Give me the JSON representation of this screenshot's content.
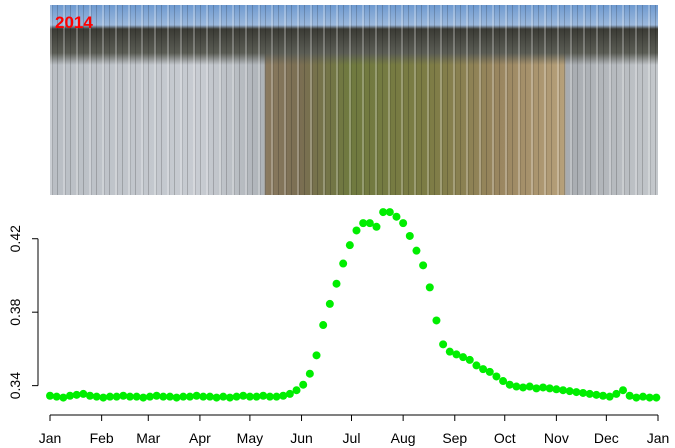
{
  "chart_data": {
    "type": "scatter",
    "annotation": "2014",
    "color": "#00ee00",
    "x": [
      1,
      5,
      9,
      13,
      17,
      21,
      25,
      29,
      33,
      37,
      41,
      45,
      49,
      53,
      57,
      61,
      65,
      69,
      73,
      77,
      81,
      85,
      89,
      93,
      97,
      101,
      105,
      109,
      113,
      117,
      121,
      125,
      129,
      133,
      137,
      141,
      145,
      149,
      153,
      157,
      161,
      165,
      169,
      173,
      177,
      181,
      185,
      189,
      193,
      197,
      201,
      205,
      209,
      213,
      217,
      221,
      225,
      229,
      233,
      237,
      241,
      245,
      249,
      253,
      257,
      261,
      265,
      269,
      273,
      277,
      281,
      285,
      289,
      293,
      297,
      301,
      305,
      309,
      313,
      317,
      321,
      325,
      329,
      333,
      337,
      341,
      345,
      349,
      353,
      357,
      361,
      365
    ],
    "values": [
      0.3345,
      0.334,
      0.3335,
      0.3345,
      0.335,
      0.3355,
      0.3345,
      0.334,
      0.3335,
      0.334,
      0.334,
      0.3345,
      0.334,
      0.334,
      0.3335,
      0.334,
      0.3345,
      0.334,
      0.334,
      0.3335,
      0.334,
      0.334,
      0.3345,
      0.334,
      0.334,
      0.3335,
      0.334,
      0.3335,
      0.334,
      0.3345,
      0.334,
      0.334,
      0.3345,
      0.334,
      0.334,
      0.3345,
      0.3355,
      0.3375,
      0.3405,
      0.3465,
      0.3565,
      0.373,
      0.3845,
      0.3955,
      0.4065,
      0.4165,
      0.4245,
      0.4285,
      0.4285,
      0.4265,
      0.4345,
      0.4345,
      0.432,
      0.4285,
      0.4215,
      0.4135,
      0.4055,
      0.3935,
      0.3755,
      0.3625,
      0.3585,
      0.357,
      0.3555,
      0.354,
      0.351,
      0.349,
      0.3475,
      0.345,
      0.3425,
      0.3405,
      0.3395,
      0.339,
      0.3395,
      0.3385,
      0.339,
      0.3385,
      0.338,
      0.3375,
      0.337,
      0.3365,
      0.336,
      0.3355,
      0.335,
      0.3345,
      0.334,
      0.3355,
      0.3375,
      0.3345,
      0.3335,
      0.334,
      0.3335,
      0.3335
    ],
    "xlim": [
      1,
      366
    ],
    "xticks": [
      {
        "value": 1,
        "label": "Jan"
      },
      {
        "value": 32,
        "label": "Feb"
      },
      {
        "value": 60,
        "label": "Mar"
      },
      {
        "value": 91,
        "label": "Apr"
      },
      {
        "value": 121,
        "label": "May"
      },
      {
        "value": 152,
        "label": "Jun"
      },
      {
        "value": 182,
        "label": "Jul"
      },
      {
        "value": 213,
        "label": "Aug"
      },
      {
        "value": 244,
        "label": "Sep"
      },
      {
        "value": 274,
        "label": "Oct"
      },
      {
        "value": 305,
        "label": "Nov"
      },
      {
        "value": 335,
        "label": "Dec"
      },
      {
        "value": 366,
        "label": "Jan"
      }
    ],
    "ylim": [
      0.33,
      0.44
    ],
    "yticks": [
      0.34,
      0.38,
      0.42
    ]
  }
}
